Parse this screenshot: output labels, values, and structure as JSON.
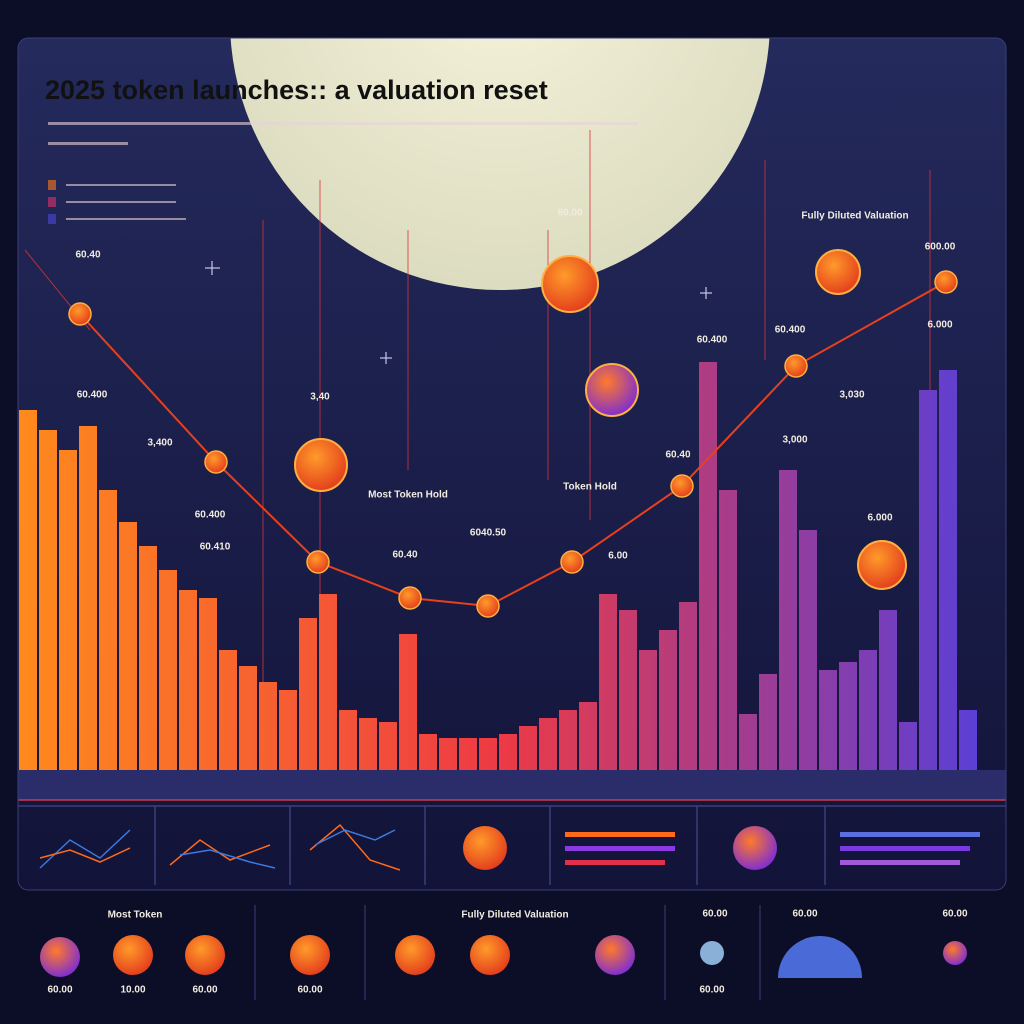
{
  "chart_data": {
    "type": "bar",
    "title": "2025 token  launches:: a valuation reset",
    "categories": [
      null,
      null,
      null,
      null,
      null,
      null,
      null,
      null,
      null,
      null,
      null,
      null,
      null,
      null,
      null,
      null,
      null,
      null,
      null,
      null,
      null,
      null,
      null,
      null,
      null,
      null,
      null,
      null,
      null,
      null,
      null,
      null,
      null,
      null,
      null,
      null,
      null,
      null,
      null,
      null,
      null,
      null,
      null,
      null,
      null,
      null,
      null,
      null
    ],
    "values": [
      90,
      85,
      80,
      86,
      70,
      62,
      56,
      50,
      45,
      43,
      30,
      26,
      22,
      20,
      38,
      44,
      15,
      13,
      12,
      34,
      9,
      8,
      8,
      8,
      9,
      11,
      13,
      15,
      17,
      44,
      40,
      30,
      35,
      42,
      102,
      70,
      14,
      24,
      75,
      60,
      25,
      27,
      30,
      40,
      12,
      95,
      100,
      15
    ],
    "colors": [
      "#ff8a1c",
      "#ee3a44",
      "#5b3fd6"
    ],
    "ylim": [
      0,
      130
    ],
    "xlim": [
      0,
      48
    ],
    "line": {
      "color": "#e8401c",
      "x": [
        3.1,
        9.9,
        15,
        19.6,
        23.5,
        27.7,
        33.2,
        38.9,
        46.4
      ],
      "values": [
        114,
        77,
        52,
        43,
        41,
        52,
        71,
        101,
        122
      ]
    },
    "annotations": [
      "60.40",
      "60.00",
      "60.400",
      "3,40",
      "3,400",
      "60.400",
      "60.410",
      "60.40",
      "6040.50",
      "6.00",
      "60.40",
      "60.400",
      "60.400",
      "6.000",
      "3,030",
      "3,000",
      "6.000",
      "600.00",
      "Most Token Hold",
      "Token Hold",
      "Fully Diluted Valuation"
    ]
  },
  "footer": {
    "labels": [
      "Most Token",
      "Fully Diluted Valuation",
      "60.00",
      "10.00",
      "60.00",
      "60.00",
      "60.00",
      "60.00",
      "60.00",
      "60.00"
    ]
  }
}
